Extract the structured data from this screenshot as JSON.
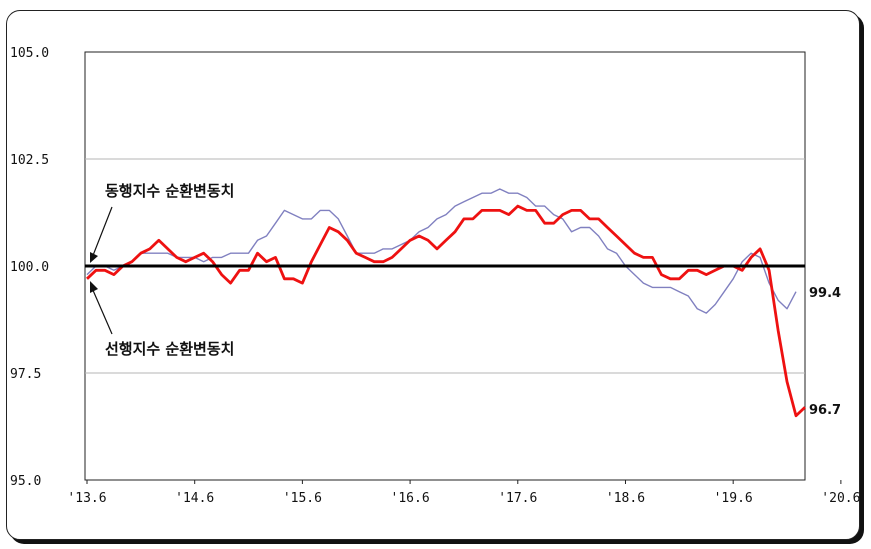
{
  "chart_data": {
    "type": "line",
    "xlabel": "",
    "ylabel": "",
    "ylim": [
      95.0,
      105.0
    ],
    "yticks": [
      "95.0",
      "97.5",
      "100.0",
      "102.5",
      "105.0"
    ],
    "xticks": [
      "'13.6",
      "'14.6",
      "'15.6",
      "'16.6",
      "'17.6",
      "'18.6",
      "'19.6",
      "'20.6"
    ],
    "grid": "horizontal",
    "reference_line": 100.0,
    "x_start": "2013-06",
    "series": [
      {
        "name": "동행지수 순환변동치",
        "color": "#8080c0",
        "end_label": "99.4",
        "values": [
          99.8,
          100.0,
          100.0,
          99.9,
          100.0,
          100.1,
          100.3,
          100.3,
          100.3,
          100.3,
          100.2,
          100.2,
          100.2,
          100.1,
          100.2,
          100.2,
          100.3,
          100.3,
          100.3,
          100.6,
          100.7,
          101.0,
          101.3,
          101.2,
          101.1,
          101.1,
          101.3,
          101.3,
          101.1,
          100.7,
          100.3,
          100.3,
          100.3,
          100.4,
          100.4,
          100.5,
          100.6,
          100.8,
          100.9,
          101.1,
          101.2,
          101.4,
          101.5,
          101.6,
          101.7,
          101.7,
          101.8,
          101.7,
          101.7,
          101.6,
          101.4,
          101.4,
          101.2,
          101.1,
          100.8,
          100.9,
          100.9,
          100.7,
          100.4,
          100.3,
          100.0,
          99.8,
          99.6,
          99.5,
          99.5,
          99.5,
          99.4,
          99.3,
          99.0,
          98.9,
          99.1,
          99.4,
          99.7,
          100.1,
          100.3,
          100.2,
          99.6,
          99.2,
          99.0,
          99.4
        ]
      },
      {
        "name": "선행지수 순환변동치",
        "color": "#ee1111",
        "end_label": "96.7",
        "values": [
          99.7,
          99.9,
          99.9,
          99.8,
          100.0,
          100.1,
          100.3,
          100.4,
          100.6,
          100.4,
          100.2,
          100.1,
          100.2,
          100.3,
          100.1,
          99.8,
          99.6,
          99.9,
          99.9,
          100.3,
          100.1,
          100.2,
          99.7,
          99.7,
          99.6,
          100.1,
          100.5,
          100.9,
          100.8,
          100.6,
          100.3,
          100.2,
          100.1,
          100.1,
          100.2,
          100.4,
          100.6,
          100.7,
          100.6,
          100.4,
          100.6,
          100.8,
          101.1,
          101.1,
          101.3,
          101.3,
          101.3,
          101.2,
          101.4,
          101.3,
          101.3,
          101.0,
          101.0,
          101.2,
          101.3,
          101.3,
          101.1,
          101.1,
          100.9,
          100.7,
          100.5,
          100.3,
          100.2,
          100.2,
          99.8,
          99.7,
          99.7,
          99.9,
          99.9,
          99.8,
          99.9,
          100.0,
          100.0,
          99.9,
          100.2,
          100.4,
          99.9,
          98.5,
          97.3,
          96.5,
          96.7
        ]
      }
    ],
    "annotations": [
      {
        "text": "동행지수 순환변동치",
        "points_to": 100.0
      },
      {
        "text": "선행지수 순환변동치",
        "points_to": 100.0
      }
    ]
  }
}
